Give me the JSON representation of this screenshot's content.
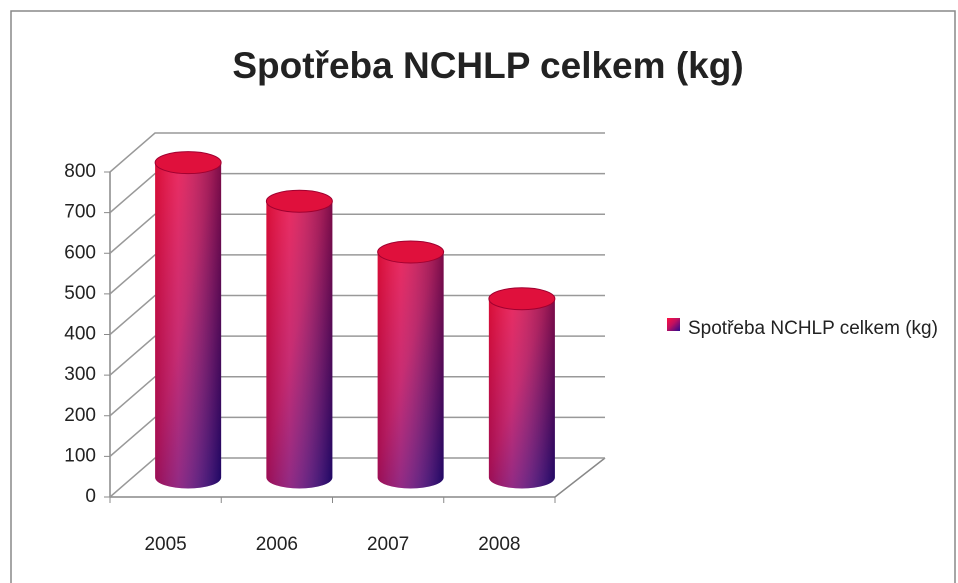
{
  "chart_data": {
    "type": "bar3d",
    "title": "Spotřeba NCHLP celkem (kg)",
    "categories": [
      "2005",
      "2006",
      "2007",
      "2008"
    ],
    "series": [
      {
        "name": "Spotřeba NCHLP celkem (kg)",
        "color": "#e0103c",
        "values": [
          775,
          680,
          555,
          440
        ]
      }
    ],
    "ylim": [
      0,
      800
    ],
    "yticks": [
      0,
      100,
      200,
      300,
      400,
      500,
      600,
      700,
      800
    ],
    "grid": true,
    "legend": "right"
  }
}
